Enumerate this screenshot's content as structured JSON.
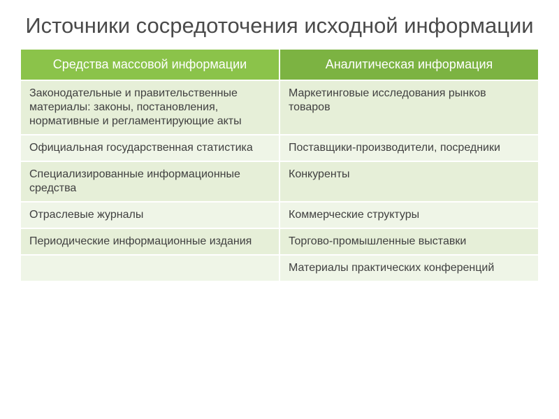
{
  "title": "Источники сосредоточения исходной информации",
  "table": {
    "type": "table",
    "columns": [
      "Средства массовой информации",
      "Аналитическая информация"
    ],
    "rows": [
      [
        "Законодательные и правительственные материалы: законы, постановления, нормативные и регламентирующие акты",
        "Маркетинговые исследования рынков товаров"
      ],
      [
        "Официальная государственная статистика",
        "Поставщики-производители, посредники"
      ],
      [
        "Специализированные информационные средства",
        "Конкуренты"
      ],
      [
        "Отраслевые журналы",
        "Коммерческие структуры"
      ],
      [
        "Периодические информационные издания",
        "Торгово-промышленные выставки"
      ],
      [
        "",
        "Материалы практических конференций"
      ]
    ],
    "header_bg_colors": [
      "#8bc34a",
      "#7cb342"
    ],
    "header_text_color": "#ffffff",
    "row_bg_colors": [
      "#e6efd8",
      "#eff5e7"
    ],
    "border_color": "#ffffff",
    "body_text_color": "#404040",
    "header_fontsize": 18,
    "body_fontsize": 16,
    "column_widths": [
      "50%",
      "50%"
    ]
  },
  "title_color": "#4a4a4a",
  "title_fontsize": 31,
  "background_color": "#ffffff"
}
